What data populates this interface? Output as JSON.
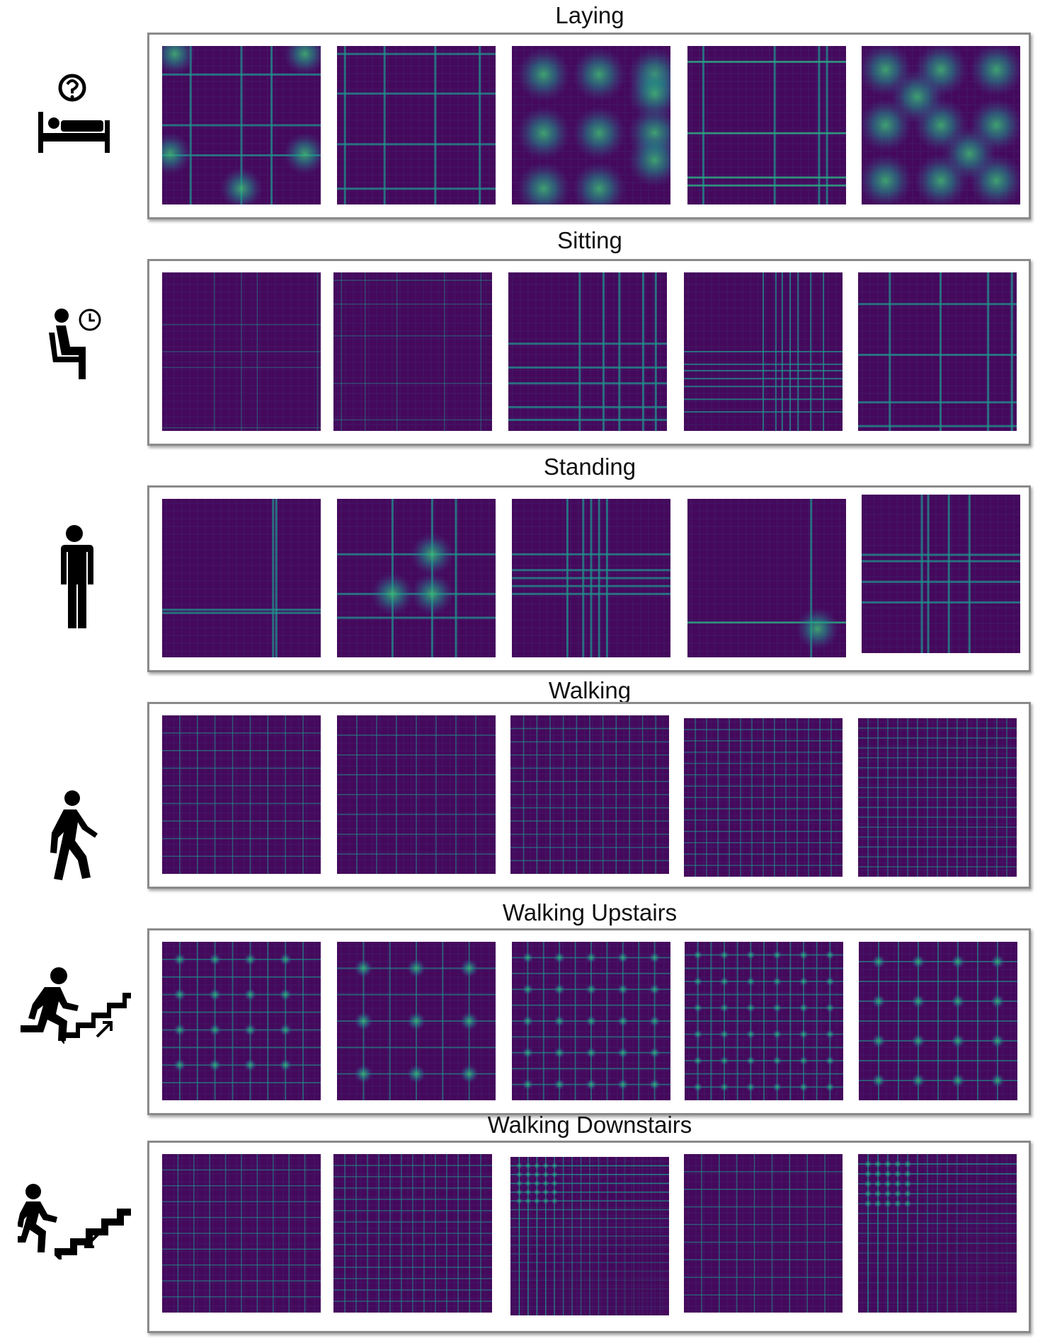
{
  "colors": {
    "base": "#45095c",
    "mid": "#3c4d8f",
    "teal": "#20928c",
    "bright": "#3fbc73",
    "panel_border": "#8a8a8a"
  },
  "rows": [
    {
      "title": "Laying",
      "icon": "bed-question-icon",
      "thumbs": [
        {
          "style": "cross-blobs",
          "lines": [
            0.18,
            0.5,
            0.69
          ],
          "blobs": [
            [
              0.08,
              0.05
            ],
            [
              0.9,
              0.05
            ],
            [
              0.05,
              0.68
            ],
            [
              0.5,
              0.9
            ],
            [
              0.9,
              0.68
            ]
          ]
        },
        {
          "style": "grid",
          "lines": [
            0.05,
            0.3,
            0.62,
            0.9
          ]
        },
        {
          "style": "blobs",
          "blobs": [
            [
              0.2,
              0.18
            ],
            [
              0.55,
              0.18
            ],
            [
              0.9,
              0.18
            ],
            [
              0.2,
              0.55
            ],
            [
              0.55,
              0.55
            ],
            [
              0.9,
              0.55
            ],
            [
              0.2,
              0.9
            ],
            [
              0.55,
              0.9
            ],
            [
              0.9,
              0.3
            ],
            [
              0.9,
              0.72
            ]
          ]
        },
        {
          "style": "edge",
          "lines": [
            0.1,
            0.55,
            0.83,
            0.88
          ]
        },
        {
          "style": "blobs",
          "blobs": [
            [
              0.15,
              0.15
            ],
            [
              0.5,
              0.15
            ],
            [
              0.85,
              0.15
            ],
            [
              0.15,
              0.5
            ],
            [
              0.5,
              0.5
            ],
            [
              0.85,
              0.5
            ],
            [
              0.15,
              0.85
            ],
            [
              0.5,
              0.85
            ],
            [
              0.85,
              0.85
            ],
            [
              0.35,
              0.32
            ],
            [
              0.68,
              0.68
            ]
          ]
        }
      ]
    },
    {
      "title": "Sitting",
      "icon": "sitting-clock-icon",
      "thumbs": [
        {
          "style": "faint",
          "lines": [
            0.33,
            0.5,
            0.6,
            0.98
          ]
        },
        {
          "style": "faint",
          "lines": [
            0.05,
            0.2,
            0.4,
            0.7,
            0.93
          ]
        },
        {
          "style": "grid",
          "lines": [
            0.45,
            0.6,
            0.7,
            0.85,
            0.93
          ]
        },
        {
          "style": "grid-dense",
          "lines": [
            0.5,
            0.58,
            0.62,
            0.67,
            0.72,
            0.8,
            0.88
          ]
        },
        {
          "style": "grid",
          "lines": [
            0.2,
            0.52,
            0.82,
            0.97
          ]
        }
      ]
    },
    {
      "title": "Standing",
      "icon": "standing-person-icon",
      "thumbs": [
        {
          "style": "cross",
          "lines": [
            0.72,
            0.7
          ]
        },
        {
          "style": "cross-blobs",
          "lines": [
            0.35,
            0.6,
            0.75
          ],
          "blobs": [
            [
              0.6,
              0.6
            ],
            [
              0.35,
              0.6
            ],
            [
              0.6,
              0.35
            ]
          ]
        },
        {
          "style": "grid",
          "lines": [
            0.35,
            0.45,
            0.5,
            0.55,
            0.6
          ]
        },
        {
          "style": "edge",
          "lines": [
            0.78
          ],
          "blobs": [
            [
              0.82,
              0.82
            ]
          ]
        },
        {
          "style": "cross",
          "lines": [
            0.38,
            0.42,
            0.55,
            0.68
          ]
        }
      ]
    },
    {
      "title": "Walking",
      "icon": "walking-person-icon",
      "thumbs": [
        {
          "style": "checker",
          "n": 9
        },
        {
          "style": "checker",
          "n": 8
        },
        {
          "style": "checker",
          "n": 12
        },
        {
          "style": "checker",
          "n": 14
        },
        {
          "style": "checker",
          "n": 16
        }
      ]
    },
    {
      "title": "Walking Upstairs",
      "icon": "upstairs-icon",
      "thumbs": [
        {
          "style": "checker-bright",
          "n": 9
        },
        {
          "style": "checker-bright",
          "n": 6
        },
        {
          "style": "checker-bright",
          "n": 10
        },
        {
          "style": "checker-bright",
          "n": 12
        },
        {
          "style": "checker-bright",
          "n": 8
        }
      ]
    },
    {
      "title": "Walking Downstairs",
      "icon": "downstairs-icon",
      "thumbs": [
        {
          "style": "checker",
          "n": 10
        },
        {
          "style": "checker",
          "n": 14
        },
        {
          "style": "corner",
          "n": 18
        },
        {
          "style": "checker",
          "n": 9
        },
        {
          "style": "corner",
          "n": 16
        }
      ]
    }
  ]
}
